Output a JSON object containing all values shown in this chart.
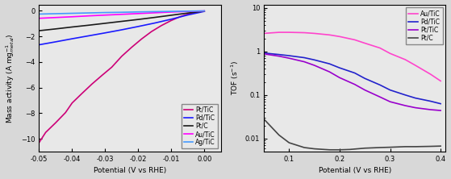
{
  "left": {
    "xlabel": "Potential (V vs RHE)",
    "ylabel": "Mass activity (A mg$_{metal}^{-1}$)",
    "xlim": [
      -0.05,
      0.005
    ],
    "ylim": [
      -11,
      0.5
    ],
    "xticks": [
      -0.05,
      -0.04,
      -0.03,
      -0.02,
      -0.01,
      0.0
    ],
    "yticks": [
      0,
      -2,
      -4,
      -6,
      -8,
      -10
    ],
    "bg_color": "#e8e8e8",
    "series": [
      {
        "label": "Pt/TiC",
        "color": "#cc0077",
        "lw": 1.2,
        "x": [
          -0.05,
          -0.048,
          -0.045,
          -0.042,
          -0.04,
          -0.037,
          -0.034,
          -0.031,
          -0.028,
          -0.025,
          -0.022,
          -0.019,
          -0.016,
          -0.013,
          -0.01,
          -0.007,
          -0.004,
          -0.002,
          0.0
        ],
        "y": [
          -10.3,
          -9.5,
          -8.75,
          -7.95,
          -7.2,
          -6.45,
          -5.72,
          -5.05,
          -4.4,
          -3.55,
          -2.85,
          -2.2,
          -1.62,
          -1.15,
          -0.75,
          -0.42,
          -0.18,
          -0.07,
          -0.01
        ]
      },
      {
        "label": "Pd/TiC",
        "color": "#1a1aff",
        "lw": 1.2,
        "x": [
          -0.05,
          -0.045,
          -0.04,
          -0.035,
          -0.03,
          -0.025,
          -0.02,
          -0.015,
          -0.01,
          -0.005,
          0.0
        ],
        "y": [
          -2.65,
          -2.42,
          -2.18,
          -1.95,
          -1.72,
          -1.48,
          -1.22,
          -0.95,
          -0.65,
          -0.32,
          -0.04
        ]
      },
      {
        "label": "Pt/C",
        "color": "#1a1a1a",
        "lw": 1.2,
        "x": [
          -0.05,
          -0.045,
          -0.04,
          -0.035,
          -0.03,
          -0.025,
          -0.02,
          -0.015,
          -0.01,
          -0.005,
          0.0
        ],
        "y": [
          -1.55,
          -1.41,
          -1.26,
          -1.12,
          -0.97,
          -0.82,
          -0.67,
          -0.51,
          -0.34,
          -0.17,
          -0.02
        ]
      },
      {
        "label": "Au/TiC",
        "color": "#ff00ff",
        "lw": 1.2,
        "x": [
          -0.05,
          -0.045,
          -0.04,
          -0.035,
          -0.03,
          -0.025,
          -0.02,
          -0.015,
          -0.01,
          -0.005,
          0.0
        ],
        "y": [
          -0.58,
          -0.52,
          -0.46,
          -0.39,
          -0.33,
          -0.27,
          -0.21,
          -0.15,
          -0.09,
          -0.04,
          -0.005
        ]
      },
      {
        "label": "Ag/TiC",
        "color": "#4499ff",
        "lw": 1.2,
        "x": [
          -0.05,
          -0.045,
          -0.04,
          -0.035,
          -0.03,
          -0.025,
          -0.02,
          -0.015,
          -0.01,
          -0.005,
          0.0
        ],
        "y": [
          -0.25,
          -0.22,
          -0.19,
          -0.16,
          -0.13,
          -0.11,
          -0.08,
          -0.06,
          -0.04,
          -0.02,
          -0.003
        ]
      }
    ]
  },
  "right": {
    "xlabel": "Potential (V vs RHE)",
    "ylabel": "TOF (s$^{-1}$)",
    "xlim": [
      0.05,
      0.41
    ],
    "ylim_log": [
      0.005,
      12
    ],
    "xticks": [
      0.1,
      0.2,
      0.3,
      0.4
    ],
    "yticks": [
      0.01,
      0.1,
      1,
      10
    ],
    "bg_color": "#e8e8e8",
    "series": [
      {
        "label": "Au/TiC",
        "color": "#ff44cc",
        "lw": 1.2,
        "x": [
          0.05,
          0.08,
          0.1,
          0.13,
          0.15,
          0.18,
          0.2,
          0.23,
          0.25,
          0.28,
          0.3,
          0.33,
          0.35,
          0.38,
          0.4
        ],
        "y": [
          2.6,
          2.75,
          2.75,
          2.7,
          2.6,
          2.4,
          2.2,
          1.85,
          1.55,
          1.2,
          0.9,
          0.65,
          0.48,
          0.3,
          0.21
        ]
      },
      {
        "label": "Pd/TiC",
        "color": "#2222cc",
        "lw": 1.2,
        "x": [
          0.05,
          0.08,
          0.1,
          0.13,
          0.15,
          0.18,
          0.2,
          0.23,
          0.25,
          0.28,
          0.3,
          0.33,
          0.35,
          0.38,
          0.4
        ],
        "y": [
          0.92,
          0.85,
          0.8,
          0.72,
          0.64,
          0.52,
          0.42,
          0.32,
          0.24,
          0.17,
          0.13,
          0.1,
          0.085,
          0.072,
          0.063
        ]
      },
      {
        "label": "Pt/TiC",
        "color": "#9900cc",
        "lw": 1.2,
        "x": [
          0.05,
          0.08,
          0.1,
          0.13,
          0.15,
          0.18,
          0.2,
          0.23,
          0.25,
          0.28,
          0.3,
          0.33,
          0.35,
          0.38,
          0.4
        ],
        "y": [
          0.88,
          0.78,
          0.7,
          0.58,
          0.48,
          0.34,
          0.25,
          0.175,
          0.13,
          0.09,
          0.07,
          0.057,
          0.051,
          0.046,
          0.044
        ]
      },
      {
        "label": "Pt/C",
        "color": "#444444",
        "lw": 1.2,
        "x": [
          0.05,
          0.08,
          0.1,
          0.13,
          0.15,
          0.18,
          0.2,
          0.22,
          0.25,
          0.28,
          0.3,
          0.33,
          0.35,
          0.38,
          0.4
        ],
        "y": [
          0.028,
          0.012,
          0.008,
          0.0062,
          0.0058,
          0.0055,
          0.0055,
          0.0056,
          0.006,
          0.0062,
          0.0063,
          0.0065,
          0.0065,
          0.0066,
          0.0067
        ]
      }
    ]
  }
}
